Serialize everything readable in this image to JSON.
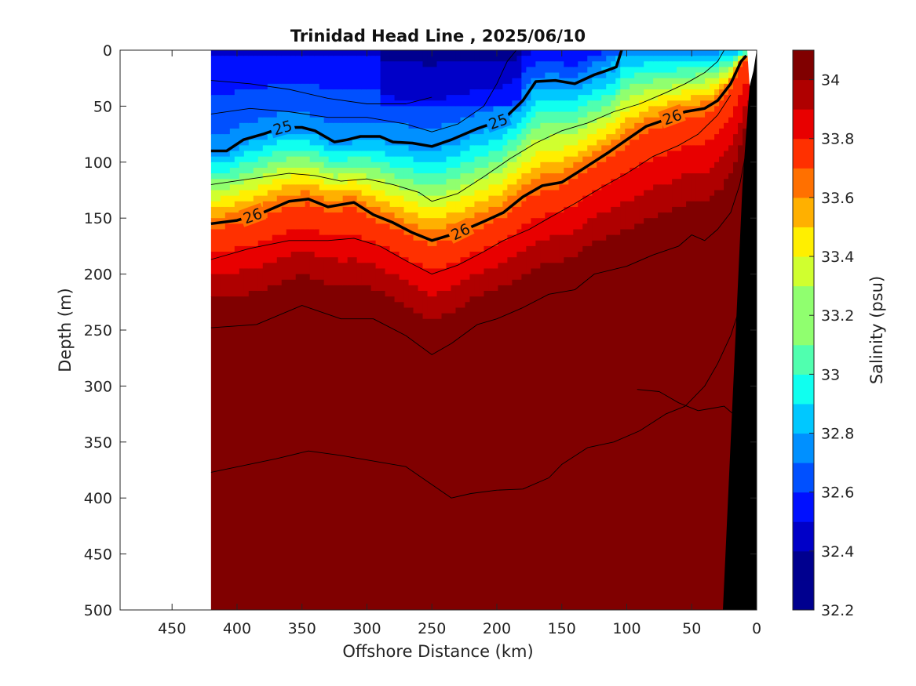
{
  "chart_data": {
    "type": "contour",
    "title": "Trinidad Head Line , 2025/06/10",
    "xlabel": "Offshore Distance (km)",
    "ylabel": "Depth (m)",
    "xlim": [
      490,
      0
    ],
    "ylim": [
      0,
      500
    ],
    "x_ticks": [
      "450",
      "400",
      "350",
      "300",
      "250",
      "200",
      "150",
      "100",
      "50",
      "0"
    ],
    "x_tick_values": [
      450,
      400,
      350,
      300,
      250,
      200,
      150,
      100,
      50,
      0
    ],
    "y_ticks": [
      "0",
      "50",
      "100",
      "150",
      "200",
      "250",
      "300",
      "350",
      "400",
      "450",
      "500"
    ],
    "y_tick_values": [
      0,
      50,
      100,
      150,
      200,
      250,
      300,
      350,
      400,
      450,
      500
    ],
    "data_extent_km": [
      420,
      0
    ],
    "colorbar": {
      "label": "Salinity (psu)",
      "range": [
        32.2,
        34.1
      ],
      "tick_labels": [
        "32.2",
        "32.4",
        "32.6",
        "32.8",
        "33",
        "33.2",
        "33.4",
        "33.6",
        "33.8",
        "34"
      ],
      "tick_values": [
        32.2,
        32.4,
        32.6,
        32.8,
        33.0,
        33.2,
        33.4,
        33.6,
        33.8,
        34.0
      ],
      "levels": [
        32.2,
        32.3,
        32.4,
        32.5,
        32.6,
        32.7,
        32.8,
        32.9,
        33.0,
        33.1,
        33.2,
        33.3,
        33.4,
        33.5,
        33.6,
        33.7,
        33.8,
        33.9,
        34.0,
        34.1
      ],
      "colors": [
        "#00008f",
        "#0000c8",
        "#0010ff",
        "#0050ff",
        "#0090ff",
        "#00c8ff",
        "#10ffef",
        "#50ffaf",
        "#90ff6f",
        "#d0ff2f",
        "#ffef00",
        "#ffb000",
        "#ff7000",
        "#ff3000",
        "#e80000",
        "#af0000",
        "#800000"
      ]
    },
    "density_contours": [
      {
        "label": "25",
        "bold": true,
        "points": [
          [
            420,
            90
          ],
          [
            408,
            90
          ],
          [
            395,
            80
          ],
          [
            380,
            75
          ],
          [
            365,
            69
          ],
          [
            350,
            69
          ],
          [
            340,
            72
          ],
          [
            325,
            82
          ],
          [
            315,
            80
          ],
          [
            305,
            77
          ],
          [
            290,
            77
          ],
          [
            280,
            82
          ],
          [
            265,
            83
          ],
          [
            250,
            86
          ],
          [
            235,
            80
          ],
          [
            215,
            70
          ],
          [
            195,
            62
          ],
          [
            180,
            45
          ],
          [
            170,
            28
          ],
          [
            155,
            27
          ],
          [
            140,
            30
          ],
          [
            125,
            22
          ],
          [
            115,
            18
          ],
          [
            108,
            15
          ],
          [
            104,
            0
          ]
        ]
      },
      {
        "label": "26",
        "bold": true,
        "points": [
          [
            420,
            155
          ],
          [
            400,
            152
          ],
          [
            380,
            145
          ],
          [
            360,
            135
          ],
          [
            345,
            133
          ],
          [
            330,
            140
          ],
          [
            310,
            136
          ],
          [
            295,
            147
          ],
          [
            280,
            154
          ],
          [
            265,
            163
          ],
          [
            250,
            170
          ],
          [
            230,
            163
          ],
          [
            210,
            153
          ],
          [
            195,
            145
          ],
          [
            180,
            131
          ],
          [
            165,
            121
          ],
          [
            150,
            118
          ],
          [
            135,
            107
          ],
          [
            115,
            92
          ],
          [
            100,
            80
          ],
          [
            85,
            68
          ],
          [
            70,
            62
          ],
          [
            55,
            55
          ],
          [
            40,
            52
          ],
          [
            30,
            45
          ],
          [
            20,
            30
          ],
          [
            12,
            10
          ],
          [
            8,
            5
          ]
        ]
      },
      {
        "label": "",
        "bold": false,
        "points": [
          [
            420,
            27
          ],
          [
            390,
            30
          ],
          [
            360,
            35
          ],
          [
            330,
            43
          ],
          [
            300,
            48
          ],
          [
            270,
            48
          ],
          [
            250,
            42
          ]
        ]
      },
      {
        "label": "",
        "bold": false,
        "points": [
          [
            420,
            57
          ],
          [
            390,
            52
          ],
          [
            360,
            55
          ],
          [
            330,
            60
          ],
          [
            300,
            60
          ],
          [
            270,
            66
          ],
          [
            250,
            73
          ],
          [
            230,
            66
          ],
          [
            210,
            50
          ],
          [
            200,
            30
          ],
          [
            192,
            10
          ],
          [
            185,
            0
          ]
        ]
      },
      {
        "label": "",
        "bold": false,
        "points": [
          [
            420,
            120
          ],
          [
            390,
            115
          ],
          [
            360,
            110
          ],
          [
            340,
            112
          ],
          [
            320,
            117
          ],
          [
            300,
            115
          ],
          [
            280,
            120
          ],
          [
            260,
            127
          ],
          [
            250,
            135
          ],
          [
            230,
            128
          ],
          [
            210,
            113
          ],
          [
            190,
            97
          ],
          [
            170,
            83
          ],
          [
            150,
            72
          ],
          [
            130,
            65
          ],
          [
            110,
            55
          ],
          [
            90,
            48
          ],
          [
            70,
            38
          ],
          [
            55,
            30
          ],
          [
            40,
            20
          ],
          [
            30,
            10
          ],
          [
            25,
            0
          ]
        ]
      },
      {
        "label": "",
        "bold": false,
        "points": [
          [
            420,
            187
          ],
          [
            390,
            177
          ],
          [
            360,
            170
          ],
          [
            330,
            170
          ],
          [
            310,
            168
          ],
          [
            290,
            175
          ],
          [
            270,
            188
          ],
          [
            250,
            200
          ],
          [
            230,
            192
          ],
          [
            210,
            180
          ],
          [
            195,
            170
          ],
          [
            175,
            160
          ],
          [
            160,
            150
          ],
          [
            140,
            137
          ],
          [
            120,
            123
          ],
          [
            100,
            110
          ],
          [
            80,
            95
          ],
          [
            60,
            85
          ],
          [
            45,
            75
          ],
          [
            30,
            58
          ],
          [
            20,
            40
          ]
        ]
      },
      {
        "label": "",
        "bold": false,
        "points": [
          [
            420,
            248
          ],
          [
            385,
            245
          ],
          [
            350,
            228
          ],
          [
            320,
            240
          ],
          [
            295,
            240
          ],
          [
            270,
            255
          ],
          [
            250,
            272
          ],
          [
            235,
            262
          ],
          [
            215,
            245
          ],
          [
            200,
            240
          ],
          [
            180,
            230
          ],
          [
            160,
            218
          ],
          [
            140,
            214
          ],
          [
            125,
            200
          ],
          [
            100,
            193
          ],
          [
            80,
            183
          ],
          [
            60,
            175
          ],
          [
            50,
            165
          ],
          [
            40,
            170
          ],
          [
            30,
            160
          ],
          [
            20,
            145
          ],
          [
            13,
            120
          ],
          [
            8,
            90
          ]
        ]
      },
      {
        "label": "",
        "bold": false,
        "points": [
          [
            420,
            377
          ],
          [
            395,
            371
          ],
          [
            370,
            365
          ],
          [
            345,
            358
          ],
          [
            320,
            362
          ],
          [
            295,
            367
          ],
          [
            270,
            372
          ],
          [
            255,
            384
          ],
          [
            235,
            400
          ],
          [
            220,
            396
          ],
          [
            200,
            393
          ],
          [
            180,
            392
          ],
          [
            160,
            382
          ],
          [
            150,
            370
          ],
          [
            130,
            355
          ],
          [
            110,
            350
          ],
          [
            90,
            340
          ],
          [
            70,
            325
          ],
          [
            55,
            318
          ],
          [
            40,
            300
          ],
          [
            30,
            280
          ],
          [
            20,
            255
          ],
          [
            13,
            230
          ]
        ]
      },
      {
        "label": "",
        "bold": false,
        "points": [
          [
            92,
            303
          ],
          [
            75,
            305
          ],
          [
            60,
            315
          ],
          [
            45,
            322
          ],
          [
            35,
            320
          ],
          [
            25,
            318
          ],
          [
            18,
            325
          ],
          [
            15,
            327
          ]
        ]
      }
    ]
  }
}
